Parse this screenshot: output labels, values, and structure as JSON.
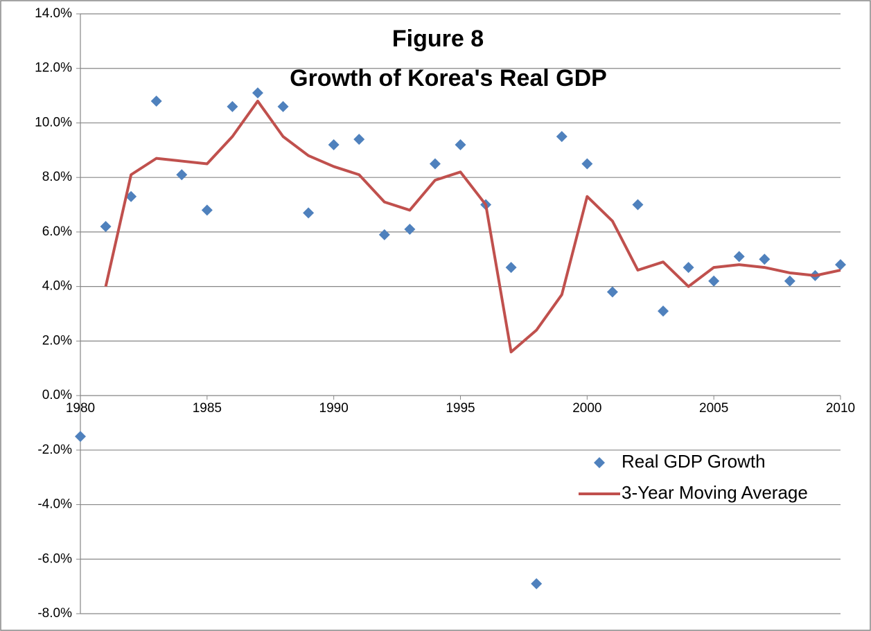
{
  "chart_data": {
    "type": "line",
    "title": [
      "Figure 8",
      "Growth of Korea's Real GDP"
    ],
    "x": [
      1980,
      1981,
      1982,
      1983,
      1984,
      1985,
      1986,
      1987,
      1988,
      1989,
      1990,
      1991,
      1992,
      1993,
      1994,
      1995,
      1996,
      1997,
      1998,
      1999,
      2000,
      2001,
      2002,
      2003,
      2004,
      2005,
      2006,
      2007,
      2008,
      2009,
      2010
    ],
    "series": [
      {
        "name": "Real GDP Growth",
        "kind": "scatter",
        "color": "#4f81bd",
        "values": [
          -1.5,
          6.2,
          7.3,
          10.8,
          8.1,
          6.8,
          10.6,
          11.1,
          10.6,
          6.7,
          9.2,
          9.4,
          5.9,
          6.1,
          8.5,
          9.2,
          7.0,
          4.7,
          -6.9,
          9.5,
          8.5,
          3.8,
          7.0,
          3.1,
          4.7,
          4.2,
          5.1,
          5.0,
          4.2,
          4.4,
          4.8
        ]
      },
      {
        "name": "3-Year Moving Average",
        "kind": "line",
        "color": "#c0504d",
        "values": [
          null,
          4.0,
          8.1,
          8.7,
          8.6,
          8.5,
          9.5,
          10.8,
          9.5,
          8.8,
          8.4,
          8.1,
          7.1,
          6.8,
          7.9,
          8.2,
          7.0,
          1.6,
          2.4,
          3.7,
          7.3,
          6.4,
          4.6,
          4.9,
          4.0,
          4.7,
          4.8,
          4.7,
          4.5,
          4.4,
          4.6
        ]
      }
    ],
    "xlim": [
      1980,
      2010
    ],
    "xticks": [
      1980,
      1985,
      1990,
      1995,
      2000,
      2005,
      2010
    ],
    "ylim": [
      -8,
      14
    ],
    "yticks": [
      {
        "value": -8,
        "label": "-8.0%"
      },
      {
        "value": -6,
        "label": "-6.0%"
      },
      {
        "value": -4,
        "label": "-4.0%"
      },
      {
        "value": -2,
        "label": "-2.0%"
      },
      {
        "value": 0,
        "label": "0.0%"
      },
      {
        "value": 2,
        "label": "2.0%"
      },
      {
        "value": 4,
        "label": "4.0%"
      },
      {
        "value": 6,
        "label": "6.0%"
      },
      {
        "value": 8,
        "label": "8.0%"
      },
      {
        "value": 10,
        "label": "10.0%"
      },
      {
        "value": 12,
        "label": "12.0%"
      },
      {
        "value": 14,
        "label": "14.0%"
      }
    ],
    "grid": true,
    "legend": "lower right"
  }
}
